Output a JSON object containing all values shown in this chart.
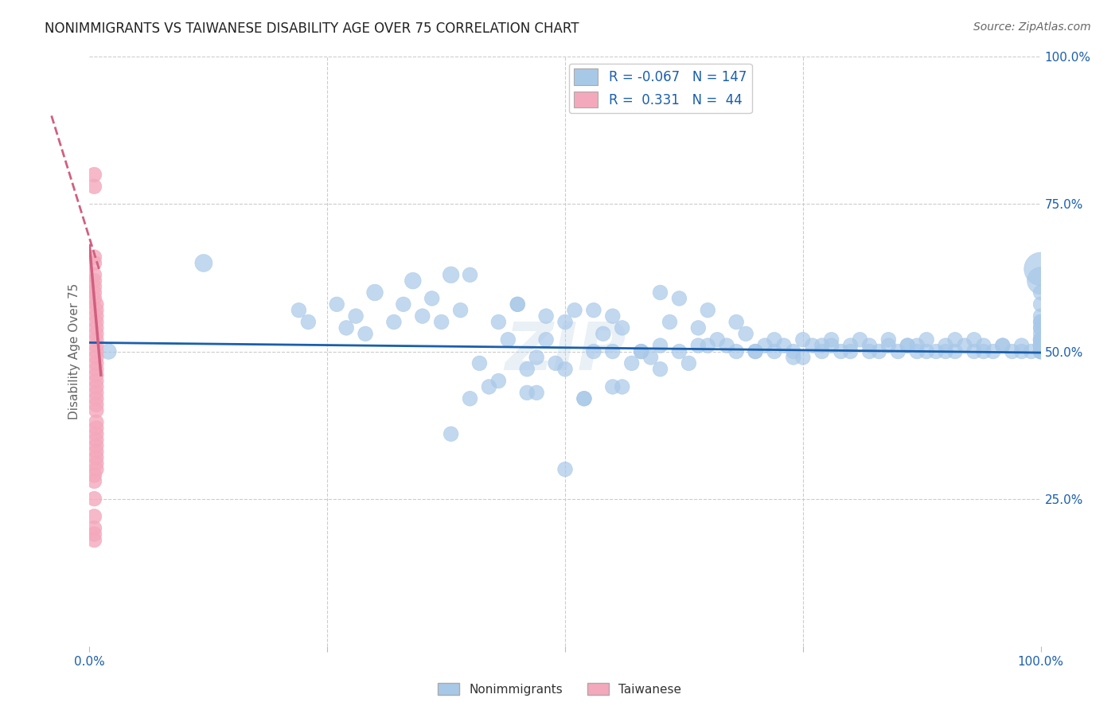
{
  "title": "NONIMMIGRANTS VS TAIWANESE DISABILITY AGE OVER 75 CORRELATION CHART",
  "source": "Source: ZipAtlas.com",
  "ylabel": "Disability Age Over 75",
  "legend_blue_R": "-0.067",
  "legend_blue_N": "147",
  "legend_pink_R": "0.331",
  "legend_pink_N": "44",
  "background_color": "#ffffff",
  "blue_color": "#a8c8e8",
  "blue_line_color": "#1a5fac",
  "pink_color": "#f4a8bc",
  "pink_line_color": "#d06080",
  "title_color": "#222222",
  "axis_label_color": "#1a5fac",
  "blue_scatter_x": [
    0.02,
    0.12,
    0.22,
    0.23,
    0.26,
    0.27,
    0.28,
    0.29,
    0.3,
    0.32,
    0.33,
    0.34,
    0.35,
    0.36,
    0.37,
    0.38,
    0.39,
    0.4,
    0.41,
    0.42,
    0.43,
    0.44,
    0.45,
    0.46,
    0.47,
    0.48,
    0.49,
    0.5,
    0.51,
    0.52,
    0.53,
    0.54,
    0.55,
    0.56,
    0.57,
    0.58,
    0.59,
    0.6,
    0.61,
    0.62,
    0.63,
    0.64,
    0.65,
    0.66,
    0.67,
    0.68,
    0.69,
    0.7,
    0.71,
    0.72,
    0.73,
    0.74,
    0.75,
    0.76,
    0.77,
    0.78,
    0.79,
    0.8,
    0.81,
    0.82,
    0.83,
    0.84,
    0.85,
    0.86,
    0.87,
    0.88,
    0.89,
    0.9,
    0.91,
    0.92,
    0.93,
    0.94,
    0.95,
    0.96,
    0.97,
    0.98,
    0.99,
    1.0,
    1.0,
    1.0,
    1.0,
    1.0,
    1.0,
    1.0,
    1.0,
    1.0,
    1.0,
    1.0,
    1.0,
    1.0,
    1.0,
    1.0,
    1.0,
    1.0,
    1.0,
    1.0,
    1.0,
    1.0,
    1.0,
    1.0,
    0.38,
    0.46,
    0.5,
    0.52,
    0.55,
    0.6,
    0.4,
    0.45,
    0.48,
    0.53,
    0.56,
    0.58,
    0.62,
    0.65,
    0.68,
    0.72,
    0.75,
    0.78,
    0.82,
    0.86,
    0.88,
    0.91,
    0.94,
    0.5,
    0.55,
    0.43,
    0.6,
    0.47,
    0.64,
    0.7,
    0.74,
    0.77,
    0.8,
    0.84,
    0.87,
    0.9,
    0.93,
    0.96,
    0.98,
    1.0,
    1.0,
    1.0,
    1.0,
    1.0,
    1.0,
    1.0,
    1.0
  ],
  "blue_scatter_y": [
    0.5,
    0.65,
    0.57,
    0.55,
    0.58,
    0.54,
    0.56,
    0.53,
    0.6,
    0.55,
    0.58,
    0.62,
    0.56,
    0.59,
    0.55,
    0.63,
    0.57,
    0.42,
    0.48,
    0.44,
    0.55,
    0.52,
    0.58,
    0.47,
    0.49,
    0.56,
    0.48,
    0.55,
    0.57,
    0.42,
    0.5,
    0.53,
    0.5,
    0.44,
    0.48,
    0.5,
    0.49,
    0.51,
    0.55,
    0.5,
    0.48,
    0.54,
    0.51,
    0.52,
    0.51,
    0.5,
    0.53,
    0.5,
    0.51,
    0.5,
    0.51,
    0.5,
    0.52,
    0.51,
    0.5,
    0.52,
    0.5,
    0.51,
    0.52,
    0.51,
    0.5,
    0.51,
    0.5,
    0.51,
    0.5,
    0.52,
    0.5,
    0.51,
    0.5,
    0.51,
    0.5,
    0.51,
    0.5,
    0.51,
    0.5,
    0.51,
    0.5,
    0.51,
    0.52,
    0.51,
    0.5,
    0.52,
    0.51,
    0.52,
    0.5,
    0.51,
    0.52,
    0.5,
    0.51,
    0.52,
    0.5,
    0.54,
    0.51,
    0.52,
    0.5,
    0.51,
    0.52,
    0.5,
    0.55,
    0.51,
    0.36,
    0.43,
    0.47,
    0.42,
    0.44,
    0.47,
    0.63,
    0.58,
    0.52,
    0.57,
    0.54,
    0.5,
    0.59,
    0.57,
    0.55,
    0.52,
    0.49,
    0.51,
    0.5,
    0.51,
    0.5,
    0.52,
    0.5,
    0.3,
    0.56,
    0.45,
    0.6,
    0.43,
    0.51,
    0.5,
    0.49,
    0.51,
    0.5,
    0.52,
    0.51,
    0.5,
    0.52,
    0.51,
    0.5,
    0.53,
    0.54,
    0.55,
    0.56,
    0.58,
    0.6,
    0.62,
    0.64
  ],
  "blue_scatter_sizes": [
    200,
    250,
    180,
    180,
    180,
    180,
    180,
    180,
    220,
    180,
    180,
    220,
    180,
    180,
    180,
    220,
    180,
    180,
    180,
    180,
    180,
    180,
    180,
    180,
    180,
    180,
    180,
    180,
    180,
    180,
    180,
    180,
    180,
    180,
    180,
    180,
    180,
    180,
    180,
    180,
    180,
    180,
    180,
    180,
    180,
    180,
    180,
    180,
    180,
    180,
    180,
    180,
    180,
    180,
    180,
    180,
    180,
    180,
    180,
    180,
    180,
    180,
    180,
    180,
    180,
    180,
    180,
    180,
    180,
    180,
    180,
    180,
    180,
    180,
    180,
    180,
    180,
    180,
    180,
    180,
    180,
    180,
    180,
    180,
    180,
    180,
    180,
    180,
    180,
    180,
    180,
    180,
    180,
    180,
    180,
    180,
    180,
    180,
    180,
    180,
    180,
    180,
    180,
    180,
    180,
    180,
    180,
    180,
    180,
    180,
    180,
    180,
    180,
    180,
    180,
    180,
    180,
    180,
    180,
    180,
    180,
    180,
    180,
    180,
    180,
    180,
    180,
    180,
    180,
    180,
    180,
    180,
    180,
    180,
    180,
    180,
    180,
    180,
    180,
    180,
    180,
    180,
    180,
    180,
    180,
    600,
    900
  ],
  "pink_scatter_x": [
    0.005,
    0.005,
    0.005,
    0.005,
    0.005,
    0.005,
    0.005,
    0.007,
    0.007,
    0.007,
    0.007,
    0.007,
    0.007,
    0.007,
    0.007,
    0.007,
    0.007,
    0.007,
    0.007,
    0.007,
    0.007,
    0.007,
    0.007,
    0.007,
    0.007,
    0.007,
    0.007,
    0.007,
    0.007,
    0.007,
    0.007,
    0.007,
    0.007,
    0.007,
    0.007,
    0.005,
    0.005,
    0.005,
    0.005,
    0.005,
    0.005,
    0.005,
    0.005,
    0.005
  ],
  "pink_scatter_y": [
    0.66,
    0.65,
    0.63,
    0.62,
    0.61,
    0.6,
    0.59,
    0.58,
    0.57,
    0.56,
    0.55,
    0.54,
    0.53,
    0.52,
    0.51,
    0.5,
    0.49,
    0.48,
    0.47,
    0.46,
    0.45,
    0.44,
    0.43,
    0.42,
    0.41,
    0.4,
    0.38,
    0.37,
    0.36,
    0.35,
    0.34,
    0.33,
    0.32,
    0.31,
    0.3,
    0.25,
    0.22,
    0.78,
    0.8,
    0.2,
    0.19,
    0.18,
    0.29,
    0.28
  ],
  "pink_scatter_sizes": [
    180,
    180,
    180,
    180,
    180,
    180,
    180,
    180,
    180,
    180,
    180,
    180,
    180,
    180,
    180,
    180,
    180,
    180,
    180,
    180,
    180,
    180,
    180,
    180,
    180,
    180,
    180,
    180,
    180,
    180,
    180,
    180,
    180,
    180,
    180,
    180,
    180,
    180,
    180,
    180,
    180,
    180,
    180,
    180
  ],
  "xlim": [
    0.0,
    1.0
  ],
  "ylim": [
    0.0,
    1.0
  ],
  "xticks": [
    0.0,
    0.25,
    0.5,
    0.75,
    1.0
  ],
  "xtick_labels": [
    "0.0%",
    "",
    "",
    "",
    "100.0%"
  ],
  "ytick_values_right": [
    0.25,
    0.5,
    0.75,
    1.0
  ],
  "ytick_labels_right": [
    "25.0%",
    "50.0%",
    "75.0%",
    "100.0%"
  ]
}
